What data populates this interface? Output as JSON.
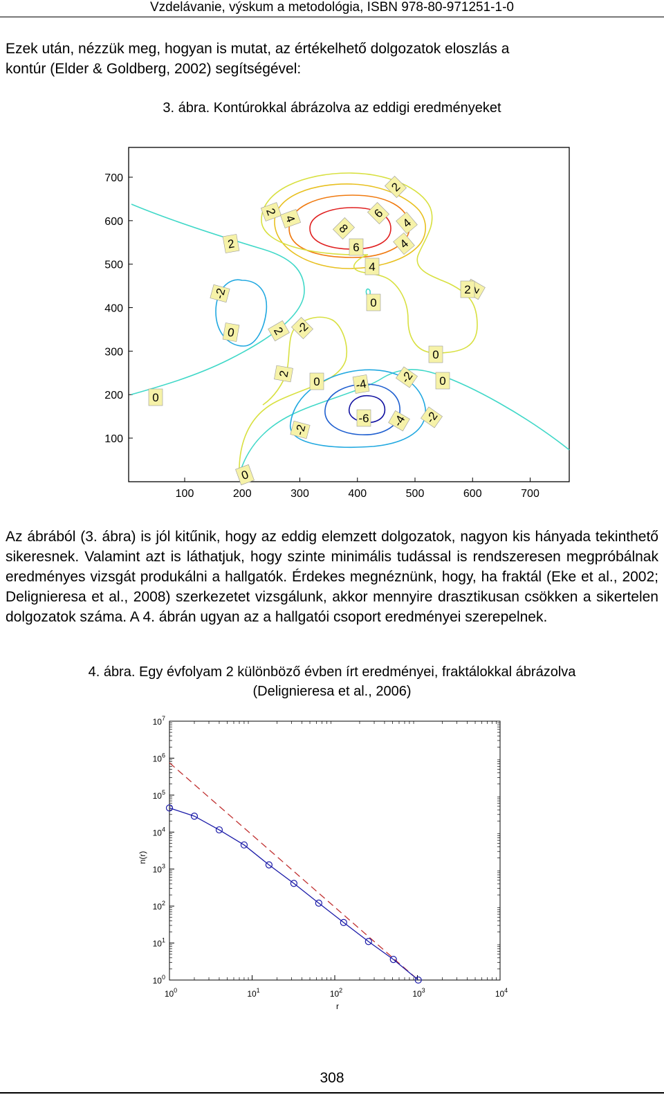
{
  "header": {
    "text": "Vzdelávanie, výskum a metodológia, ISBN 978-80-971251-1-0"
  },
  "paragraph1": {
    "line1": "Ezek után, nézzük meg, hogyan is mutat, az értékelhető dolgozatok eloszlás a",
    "line2": "kontúr (Elder & Goldberg, 2002) segítségével:"
  },
  "figure3": {
    "caption": "3. ábra. Kontúrokkal ábrázolva az eddigi eredményeket"
  },
  "paragraph2": {
    "text": "Az ábrából (3. ábra) is jól kitűnik, hogy az eddig elemzett dolgozatok, nagyon kis hányada tekinthető sikeresnek. Valamint azt is láthatjuk, hogy szinte minimális tudással is rendszeresen megpróbálnak eredményes vizsgát produkálni a hallgatók. Érdekes megnéznünk, hogy, ha fraktál (Eke et al., 2002; Delignieresa et al., 2008) szerkezetet vizsgálunk, akkor mennyire drasztikusan csökken a sikertelen dolgozatok száma. A 4. ábrán ugyan az a hallgatói csoport eredményei szerepelnek."
  },
  "figure4": {
    "caption_line1": "4. ábra. Egy évfolyam 2 különböző évben írt eredményei, fraktálokkal ábrázolva",
    "caption_line2": "(Delignieresa et al., 2006)"
  },
  "chart_data": [
    {
      "type": "contour",
      "x_ticks": [
        "100",
        "200",
        "300",
        "400",
        "500",
        "600",
        "700"
      ],
      "y_ticks": [
        "100",
        "200",
        "300",
        "400",
        "500",
        "600",
        "700"
      ],
      "xlim": [
        0,
        770
      ],
      "ylim": [
        0,
        770
      ],
      "contour_levels": [
        {
          "level": 8,
          "color": "#e02020"
        },
        {
          "level": 6,
          "color": "#f07a10"
        },
        {
          "level": 4,
          "color": "#e8c020"
        },
        {
          "level": 2,
          "color": "#d8e040"
        },
        {
          "level": 0,
          "color": "#40d8c8"
        },
        {
          "level": -2,
          "color": "#20a8e0"
        },
        {
          "level": -4,
          "color": "#2060d0"
        },
        {
          "level": -6,
          "color": "#1010a0"
        }
      ],
      "contour_labels": [
        "2",
        "2",
        "4",
        "6",
        "4",
        "8",
        "6",
        "4",
        "2",
        "0",
        "-2",
        "0",
        "2",
        "-2",
        "0",
        "4",
        "2",
        "2",
        "0",
        "-4",
        "-2",
        "0",
        "-6",
        "-2",
        "-4",
        "-2",
        "0",
        "0",
        "2"
      ]
    },
    {
      "type": "line",
      "scale": "log-log",
      "xlabel": "r",
      "ylabel": "n(r)",
      "x_ticks": [
        "10^0",
        "10^1",
        "10^2",
        "10^3",
        "10^4"
      ],
      "y_ticks": [
        "10^0",
        "10^1",
        "10^2",
        "10^3",
        "10^4",
        "10^5",
        "10^6",
        "10^7"
      ],
      "xlim": [
        1,
        10000
      ],
      "ylim": [
        1,
        10000000
      ],
      "series": [
        {
          "style": "solid-circles",
          "color": "#1a1aa8",
          "points": [
            [
              1,
              45000
            ],
            [
              2,
              27000
            ],
            [
              4,
              11500
            ],
            [
              8,
              4500
            ],
            [
              16,
              1300
            ],
            [
              32,
              410
            ],
            [
              64,
              120
            ],
            [
              128,
              36
            ],
            [
              256,
              11
            ],
            [
              512,
              3.6
            ],
            [
              1024,
              1
            ]
          ]
        },
        {
          "style": "dashed",
          "color": "#c03030",
          "points": [
            [
              1,
              750000
            ],
            [
              1024,
              1
            ]
          ]
        }
      ]
    }
  ],
  "page_number": "308"
}
